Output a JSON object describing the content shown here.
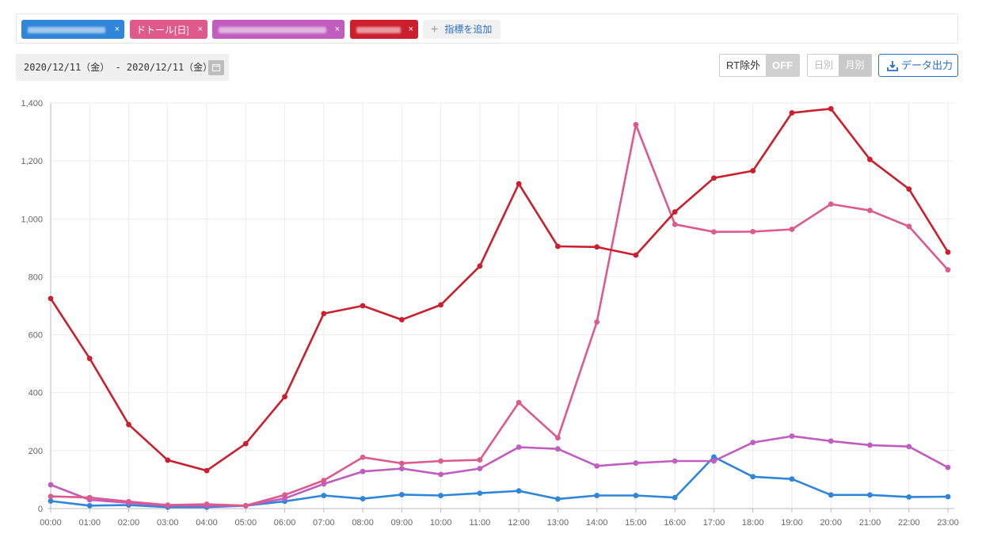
{
  "tags": [
    {
      "label": "",
      "color": "#2f86d9",
      "blurred": true
    },
    {
      "label": "ドトール[日]",
      "color": "#e0598b",
      "blurred": false
    },
    {
      "label": "",
      "color": "#c05dbf",
      "blurred": true
    },
    {
      "label": "",
      "color": "#cc1f2e",
      "blurred": true
    }
  ],
  "tag_close": "×",
  "add_metric_label": "指標を追加",
  "date_range": "2020/12/11（金） - 2020/12/11（金）",
  "rt_toggle": {
    "label": "RT除外",
    "state": "OFF"
  },
  "granularity": {
    "daily": "日別",
    "monthly": "月別"
  },
  "export_label": "データ出力",
  "chart_data": {
    "type": "line",
    "categories": [
      "00:00",
      "01:00",
      "02:00",
      "03:00",
      "04:00",
      "05:00",
      "06:00",
      "07:00",
      "08:00",
      "09:00",
      "10:00",
      "11:00",
      "12:00",
      "13:00",
      "14:00",
      "15:00",
      "16:00",
      "17:00",
      "18:00",
      "19:00",
      "20:00",
      "21:00",
      "22:00",
      "23:00"
    ],
    "ylim": [
      0,
      1400
    ],
    "yticks": [
      0,
      200,
      400,
      600,
      800,
      1000,
      1200,
      1400
    ],
    "ytick_labels": [
      "0",
      "200",
      "400",
      "600",
      "800",
      "1,000",
      "1,200",
      "1,400"
    ],
    "grid": true,
    "series": [
      {
        "color": "#cc1f2e",
        "values": [
          725,
          518,
          290,
          167,
          131,
          224,
          386,
          673,
          700,
          652,
          703,
          837,
          1121,
          905,
          903,
          875,
          1024,
          1141,
          1166,
          1366,
          1380,
          1205,
          1103,
          885
        ]
      },
      {
        "color": "#dc5a8c",
        "values": [
          42,
          38,
          24,
          12,
          15,
          10,
          47,
          97,
          177,
          156,
          164,
          168,
          366,
          244,
          644,
          1325,
          981,
          955,
          956,
          964,
          1051,
          1029,
          974,
          824
        ]
      },
      {
        "color": "#c05dbf",
        "values": [
          82,
          30,
          20,
          10,
          10,
          10,
          35,
          85,
          128,
          138,
          118,
          138,
          212,
          206,
          147,
          157,
          164,
          164,
          228,
          250,
          233,
          219,
          214,
          142
        ]
      },
      {
        "color": "#2f86d9",
        "values": [
          26,
          10,
          12,
          5,
          5,
          10,
          25,
          45,
          34,
          48,
          45,
          53,
          61,
          33,
          45,
          45,
          38,
          178,
          110,
          102,
          47,
          47,
          40,
          41
        ]
      }
    ]
  }
}
